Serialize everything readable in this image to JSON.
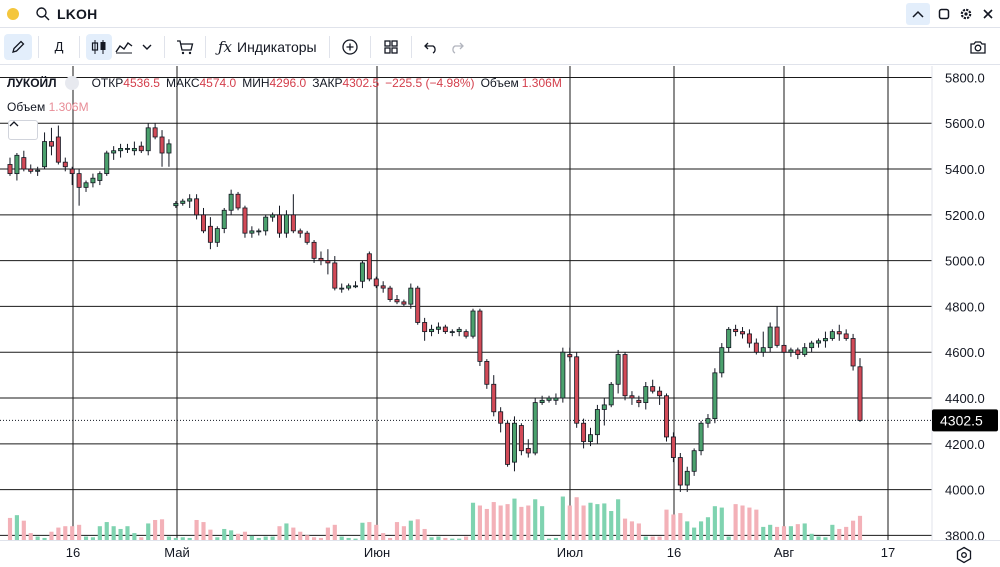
{
  "topbar": {
    "symbol": "LKOH"
  },
  "toolbar": {
    "timeframe_label": "Д",
    "indicators_label": "Индикаторы"
  },
  "legend": {
    "symbol": "ЛУКОЙЛ",
    "open_label": "ОТКР",
    "open": "4536.5",
    "high_label": "МАКС",
    "high": "4574.0",
    "low_label": "МИН",
    "low": "4296.0",
    "close_label": "ЗАКР",
    "close": "4302.5",
    "change": "−225.5 (−4.98%)",
    "volume_label": "Объем",
    "volume": "1.306M"
  },
  "volume_legend": {
    "label": "Объем",
    "value": "1.306M"
  },
  "colors": {
    "up": "#4ba16d",
    "down": "#d24a57",
    "vol_up": "#7fd3b0",
    "vol_down": "#f3b1b8",
    "grid": "#1a1a1a",
    "accent": "#e3eefb"
  },
  "icons": [
    "search-icon",
    "chevron-up-icon",
    "maximize-icon",
    "gear-icon",
    "close-icon",
    "pencil-icon",
    "candles-icon",
    "area-chart-icon",
    "chevron-down-icon",
    "cart-icon",
    "fx-icon",
    "plus-circle-icon",
    "grid-icon",
    "undo-icon",
    "redo-icon",
    "camera-icon",
    "settings-icon"
  ],
  "chart_data": {
    "type": "candlestick",
    "price_ticks": [
      "5800.0",
      "5600.0",
      "5400.0",
      "5200.0",
      "5000.0",
      "4800.0",
      "4600.0",
      "4400.0",
      "4200.0",
      "4000.0",
      "3800.0"
    ],
    "price_range": [
      3780,
      5850
    ],
    "last_price": "4302.5",
    "time_labels": [
      "16",
      "Май",
      "Июн",
      "Июл",
      "16",
      "Авг",
      "17"
    ],
    "candles": [
      [
        5420,
        5450,
        5370,
        5380
      ],
      [
        5380,
        5470,
        5350,
        5460
      ],
      [
        5450,
        5480,
        5390,
        5400
      ],
      [
        5400,
        5420,
        5380,
        5390
      ],
      [
        5390,
        5410,
        5370,
        5395
      ],
      [
        5410,
        5560,
        5400,
        5520
      ],
      [
        5520,
        5580,
        5460,
        5500
      ],
      [
        5540,
        5590,
        5420,
        5430
      ],
      [
        5430,
        5450,
        5390,
        5410
      ],
      [
        5400,
        5410,
        5330,
        5380
      ],
      [
        5380,
        5400,
        5240,
        5320
      ],
      [
        5320,
        5350,
        5300,
        5340
      ],
      [
        5340,
        5380,
        5320,
        5360
      ],
      [
        5350,
        5390,
        5330,
        5380
      ],
      [
        5380,
        5480,
        5370,
        5470
      ],
      [
        5470,
        5500,
        5440,
        5480
      ],
      [
        5480,
        5510,
        5450,
        5490
      ],
      [
        5490,
        5510,
        5470,
        5490
      ],
      [
        5480,
        5520,
        5460,
        5490
      ],
      [
        5500,
        5520,
        5470,
        5480
      ],
      [
        5480,
        5600,
        5460,
        5580
      ],
      [
        5580,
        5600,
        5530,
        5540
      ],
      [
        5540,
        5570,
        5410,
        5470
      ],
      [
        5470,
        5530,
        5410,
        5510
      ],
      [
        5240,
        5260,
        5230,
        5250
      ],
      [
        5250,
        5270,
        5240,
        5260
      ],
      [
        5260,
        5290,
        5230,
        5270
      ],
      [
        5270,
        5290,
        5180,
        5200
      ],
      [
        5200,
        5230,
        5120,
        5130
      ],
      [
        5150,
        5190,
        5050,
        5080
      ],
      [
        5080,
        5150,
        5060,
        5140
      ],
      [
        5140,
        5230,
        5120,
        5220
      ],
      [
        5220,
        5310,
        5200,
        5290
      ],
      [
        5290,
        5300,
        5220,
        5230
      ],
      [
        5230,
        5240,
        5100,
        5120
      ],
      [
        5120,
        5150,
        5100,
        5130
      ],
      [
        5130,
        5140,
        5110,
        5130
      ],
      [
        5130,
        5200,
        5110,
        5190
      ],
      [
        5190,
        5210,
        5170,
        5200
      ],
      [
        5200,
        5240,
        5100,
        5120
      ],
      [
        5120,
        5220,
        5100,
        5200
      ],
      [
        5200,
        5290,
        5120,
        5130
      ],
      [
        5130,
        5140,
        5100,
        5120
      ],
      [
        5120,
        5130,
        5070,
        5080
      ],
      [
        5080,
        5090,
        4990,
        5010
      ],
      [
        5010,
        5040,
        4980,
        5000
      ],
      [
        5000,
        5050,
        4940,
        4990
      ],
      [
        4990,
        5020,
        4870,
        4880
      ],
      [
        4880,
        4900,
        4860,
        4880
      ],
      [
        4880,
        4900,
        4870,
        4890
      ],
      [
        4890,
        4910,
        4880,
        4890
      ],
      [
        4910,
        5000,
        4880,
        4990
      ],
      [
        5030,
        5040,
        4910,
        4920
      ],
      [
        4920,
        4930,
        4880,
        4890
      ],
      [
        4890,
        4910,
        4860,
        4880
      ],
      [
        4880,
        4890,
        4820,
        4830
      ],
      [
        4830,
        4850,
        4810,
        4820
      ],
      [
        4820,
        4830,
        4800,
        4810
      ],
      [
        4810,
        4900,
        4790,
        4880
      ],
      [
        4880,
        4890,
        4720,
        4730
      ],
      [
        4730,
        4750,
        4650,
        4690
      ],
      [
        4690,
        4720,
        4670,
        4700
      ],
      [
        4700,
        4730,
        4680,
        4710
      ],
      [
        4710,
        4720,
        4680,
        4690
      ],
      [
        4690,
        4700,
        4670,
        4690
      ],
      [
        4690,
        4710,
        4670,
        4700
      ],
      [
        4690,
        4700,
        4660,
        4670
      ],
      [
        4670,
        4790,
        4660,
        4780
      ],
      [
        4780,
        4790,
        4540,
        4560
      ],
      [
        4560,
        4570,
        4440,
        4460
      ],
      [
        4460,
        4500,
        4320,
        4340
      ],
      [
        4340,
        4360,
        4250,
        4290
      ],
      [
        4290,
        4300,
        4100,
        4110
      ],
      [
        4120,
        4320,
        4080,
        4290
      ],
      [
        4280,
        4290,
        4150,
        4170
      ],
      [
        4180,
        4220,
        4140,
        4160
      ],
      [
        4160,
        4400,
        4150,
        4380
      ],
      [
        4380,
        4410,
        4370,
        4390
      ],
      [
        4390,
        4410,
        4380,
        4400
      ],
      [
        4390,
        4420,
        4370,
        4400
      ],
      [
        4400,
        4620,
        4380,
        4600
      ],
      [
        4590,
        4620,
        4560,
        4580
      ],
      [
        4580,
        4600,
        4270,
        4290
      ],
      [
        4290,
        4310,
        4180,
        4210
      ],
      [
        4210,
        4270,
        4190,
        4240
      ],
      [
        4240,
        4370,
        4200,
        4350
      ],
      [
        4350,
        4400,
        4280,
        4370
      ],
      [
        4370,
        4470,
        4360,
        4460
      ],
      [
        4460,
        4610,
        4420,
        4590
      ],
      [
        4590,
        4600,
        4390,
        4410
      ],
      [
        4410,
        4430,
        4370,
        4400
      ],
      [
        4390,
        4410,
        4360,
        4380
      ],
      [
        4380,
        4470,
        4350,
        4450
      ],
      [
        4450,
        4480,
        4420,
        4430
      ],
      [
        4430,
        4450,
        4370,
        4410
      ],
      [
        4410,
        4420,
        4210,
        4230
      ],
      [
        4230,
        4250,
        4120,
        4140
      ],
      [
        4140,
        4160,
        3990,
        4020
      ],
      [
        4020,
        4100,
        3990,
        4080
      ],
      [
        4080,
        4180,
        4060,
        4170
      ],
      [
        4170,
        4300,
        4150,
        4290
      ],
      [
        4290,
        4330,
        4270,
        4310
      ],
      [
        4310,
        4530,
        4290,
        4510
      ],
      [
        4510,
        4640,
        4490,
        4620
      ],
      [
        4620,
        4710,
        4600,
        4700
      ],
      [
        4700,
        4720,
        4670,
        4690
      ],
      [
        4690,
        4710,
        4660,
        4680
      ],
      [
        4680,
        4700,
        4620,
        4640
      ],
      [
        4640,
        4660,
        4590,
        4600
      ],
      [
        4600,
        4690,
        4580,
        4620
      ],
      [
        4620,
        4730,
        4600,
        4710
      ],
      [
        4710,
        4800,
        4620,
        4630
      ],
      [
        4630,
        4640,
        4590,
        4600
      ],
      [
        4600,
        4620,
        4580,
        4610
      ],
      [
        4610,
        4620,
        4570,
        4590
      ],
      [
        4590,
        4640,
        4580,
        4620
      ],
      [
        4620,
        4650,
        4600,
        4640
      ],
      [
        4640,
        4660,
        4620,
        4650
      ],
      [
        4650,
        4690,
        4620,
        4660
      ],
      [
        4660,
        4700,
        4650,
        4690
      ],
      [
        4690,
        4720,
        4650,
        4680
      ],
      [
        4680,
        4700,
        4650,
        4660
      ],
      [
        4660,
        4680,
        4520,
        4540
      ],
      [
        4536.5,
        4574,
        4296,
        4302.5
      ]
    ],
    "volume_scale_max": 1.306,
    "volume_range": [
      0,
      1.0
    ],
    "volumes": [
      0.32,
      0.36,
      0.28,
      0.1,
      0.05,
      0.03,
      0.12,
      0.18,
      0.2,
      0.2,
      0.22,
      0.05,
      0.04,
      0.2,
      0.26,
      0.2,
      0.16,
      0.2,
      0.1,
      0.04,
      0.24,
      0.29,
      0.3,
      0.05,
      0.03,
      0.04,
      0.03,
      0.29,
      0.26,
      0.15,
      0.04,
      0.16,
      0.14,
      0.09,
      0.12,
      0.06,
      0.03,
      0.05,
      0.05,
      0.2,
      0.24,
      0.18,
      0.12,
      0.07,
      0.04,
      0.03,
      0.18,
      0.22,
      0.05,
      0.03,
      0.02,
      0.25,
      0.26,
      0.22,
      0.1,
      0.03,
      0.26,
      0.2,
      0.28,
      0.3,
      0.16,
      0.04,
      0.05,
      0.03,
      0.02,
      0.02,
      0.05,
      0.54,
      0.5,
      0.45,
      0.55,
      0.5,
      0.52,
      0.6,
      0.48,
      0.5,
      0.59,
      0.49,
      0.02,
      0.03,
      0.63,
      0.5,
      0.62,
      0.5,
      0.54,
      0.52,
      0.53,
      0.42,
      0.59,
      0.31,
      0.27,
      0.24,
      0.05,
      0.05,
      0.05,
      0.44,
      0.37,
      0.39,
      0.27,
      0.18,
      0.27,
      0.33,
      0.49,
      0.47,
      0.05,
      0.52,
      0.5,
      0.47,
      0.44,
      0.19,
      0.22,
      0.19,
      0.2,
      0.2,
      0.23,
      0.24,
      0.09,
      0.05,
      0.04,
      0.22,
      0.16,
      0.19,
      0.28,
      0.35
    ]
  }
}
